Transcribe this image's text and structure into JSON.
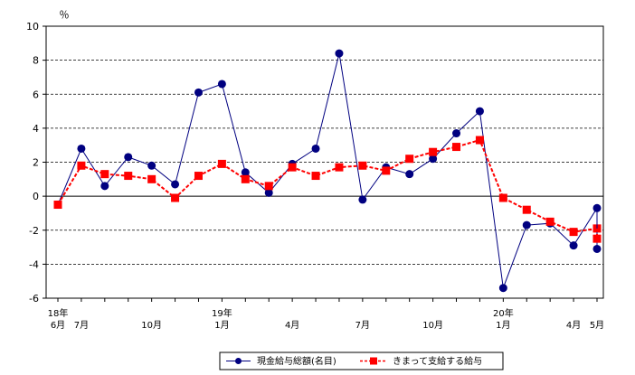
{
  "chart_data": {
    "type": "line",
    "title": "",
    "ylabel": "％",
    "ylim": [
      -6,
      10
    ],
    "yticks": [
      10,
      8,
      6,
      4,
      2,
      0,
      -2,
      -4,
      -6
    ],
    "grid": "horizontal dashed",
    "legend_position": "bottom",
    "x": [
      "18年6月",
      "7月",
      "8月",
      "9月",
      "10月",
      "11月",
      "12月",
      "19年1月",
      "2月",
      "3月",
      "4月",
      "5月",
      "6月",
      "7月",
      "8月",
      "9月",
      "10月",
      "11月",
      "12月",
      "20年1月",
      "2月",
      "3月",
      "4月",
      "5月"
    ],
    "x_tick_labels": [
      {
        "index": 0,
        "lines": [
          "18年",
          "6月"
        ]
      },
      {
        "index": 1,
        "lines": [
          "",
          "7月"
        ]
      },
      {
        "index": 4,
        "lines": [
          "",
          "10月"
        ]
      },
      {
        "index": 7,
        "lines": [
          "19年",
          "1月"
        ]
      },
      {
        "index": 10,
        "lines": [
          "",
          "4月"
        ]
      },
      {
        "index": 13,
        "lines": [
          "",
          "7月"
        ]
      },
      {
        "index": 16,
        "lines": [
          "",
          "10月"
        ]
      },
      {
        "index": 19,
        "lines": [
          "20年",
          "1月"
        ]
      },
      {
        "index": 22,
        "lines": [
          "",
          "4月"
        ]
      },
      {
        "index": 23,
        "lines": [
          "",
          "5月"
        ]
      }
    ],
    "series": [
      {
        "name": "現金給与総額(名目)",
        "color": "#000080",
        "line": "solid",
        "marker": "circle",
        "values": [
          -0.5,
          2.8,
          0.6,
          2.3,
          1.8,
          0.7,
          6.1,
          6.6,
          1.4,
          0.2,
          1.9,
          2.8,
          8.4,
          -0.2,
          1.7,
          1.3,
          2.2,
          3.7,
          5.0,
          -5.4,
          -1.7,
          -1.6,
          -2.9,
          -0.7
        ]
      },
      {
        "name": "きまって支給する給与",
        "color": "#ff0000",
        "line": "dashed",
        "marker": "square",
        "values": [
          -0.5,
          1.8,
          1.3,
          1.2,
          1.0,
          -0.1,
          1.2,
          1.9,
          1.0,
          0.6,
          1.7,
          1.2,
          1.7,
          1.8,
          1.5,
          2.2,
          2.6,
          2.9,
          3.3,
          -0.1,
          -0.8,
          -1.5,
          -2.1,
          -1.9
        ]
      }
    ],
    "series_extra_last": [
      -3.1,
      -2.5
    ]
  }
}
